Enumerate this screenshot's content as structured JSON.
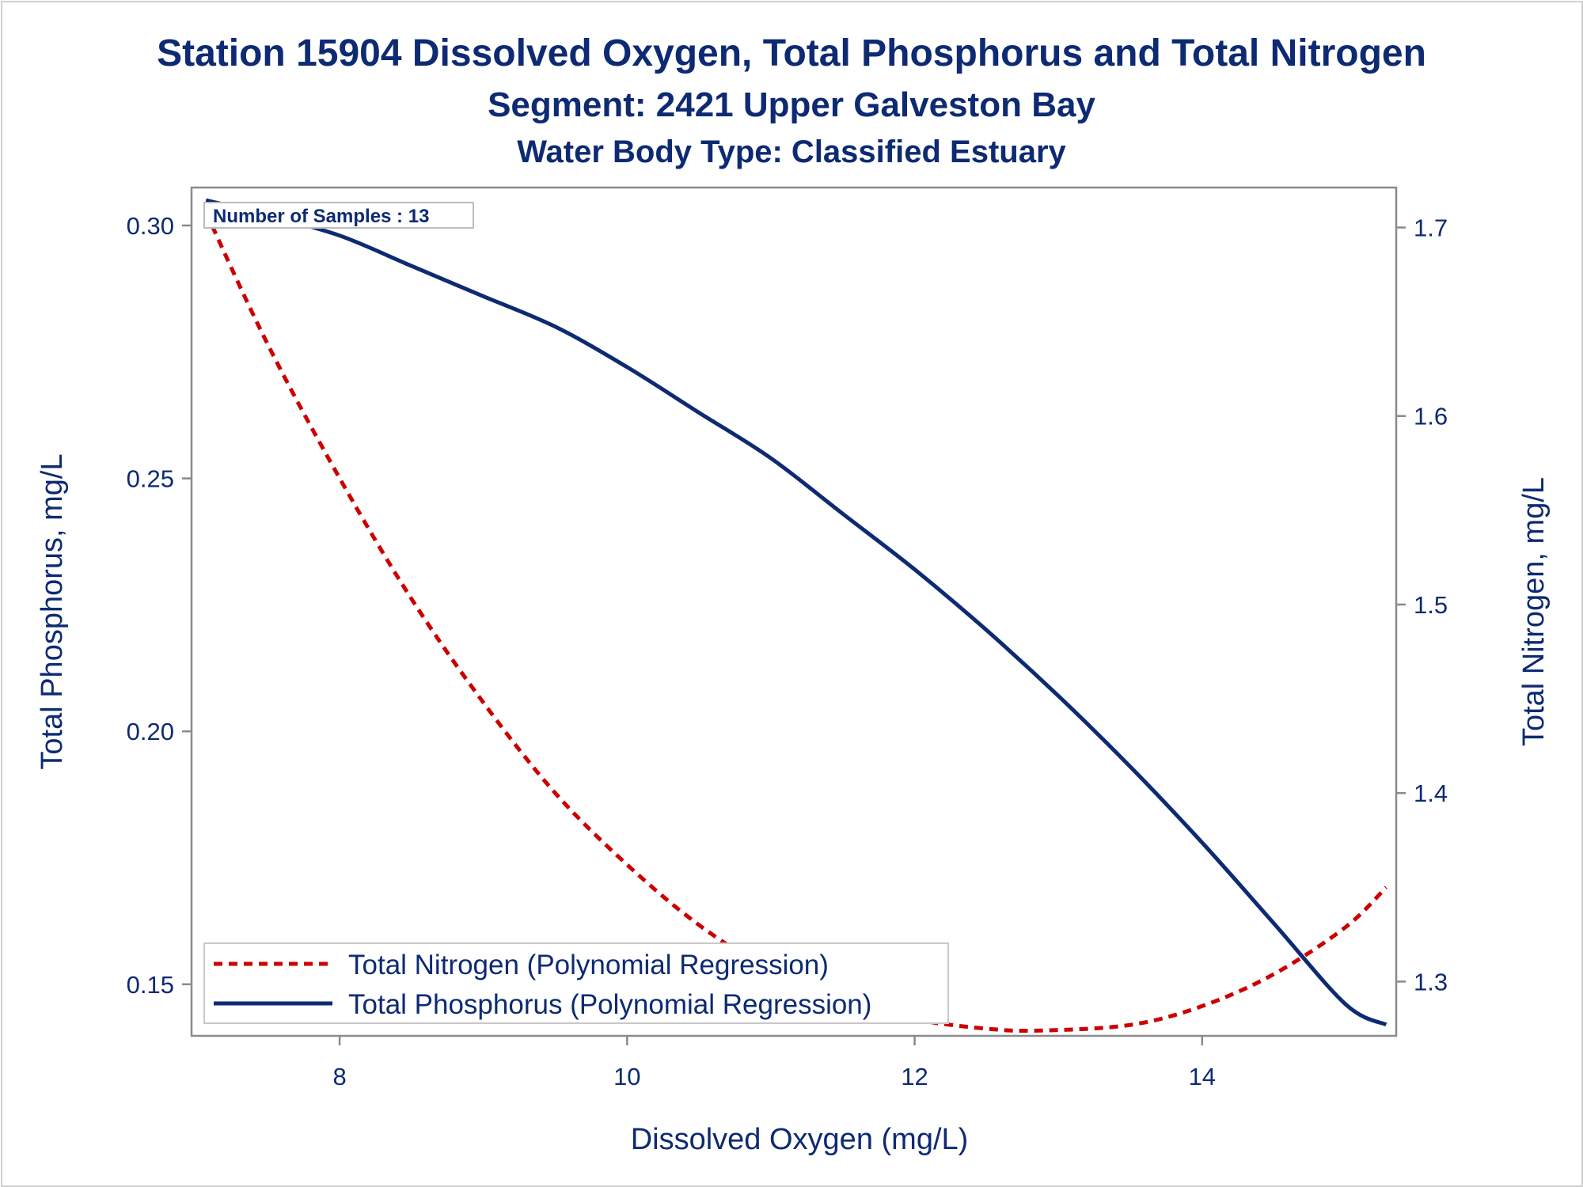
{
  "chart_data": {
    "type": "line",
    "title": "Station 15904  Dissolved Oxygen, Total Phosphorus and Total Nitrogen",
    "subtitle": "Segment: 2421  Upper Galveston Bay",
    "subtitle2": "Water Body Type: Classified Estuary",
    "xlabel": "Dissolved Oxygen (mg/L)",
    "ylabel_left": "Total Phosphorus, mg/L",
    "ylabel_right": "Total Nitrogen, mg/L",
    "xlim": [
      6.97,
      15.35
    ],
    "ylim_left": [
      0.1398,
      0.3075
    ],
    "ylim_right": [
      1.2712,
      1.7212
    ],
    "x_ticks": [
      "8",
      "10",
      "12",
      "14"
    ],
    "y_left_ticks": [
      "0.15",
      "0.20",
      "0.25",
      "0.30"
    ],
    "y_right_ticks": [
      "1.3",
      "1.4",
      "1.5",
      "1.6",
      "1.7"
    ],
    "annotation": "Number of Samples : 13",
    "grid": false,
    "legend_position": "bottom-left",
    "series": [
      {
        "name": "Total Nitrogen (Polynomial Regression)",
        "axis": "right",
        "style": "dashed",
        "color": "#cc0000",
        "x": [
          7.07,
          7.5,
          8.0,
          8.5,
          9.0,
          9.5,
          10.0,
          10.5,
          11.0,
          11.5,
          12.0,
          12.5,
          12.87,
          13.5,
          14.0,
          14.5,
          15.0,
          15.28
        ],
        "y": [
          1.708,
          1.638,
          1.567,
          1.503,
          1.448,
          1.4,
          1.362,
          1.33,
          1.306,
          1.29,
          1.28,
          1.275,
          1.274,
          1.277,
          1.287,
          1.304,
          1.329,
          1.35
        ]
      },
      {
        "name": "Total Phosphorus (Polynomial Regression)",
        "axis": "left",
        "style": "solid",
        "color": "#0d2a73",
        "x": [
          7.07,
          7.5,
          8.0,
          8.5,
          9.0,
          9.5,
          10.0,
          10.5,
          11.0,
          11.5,
          12.0,
          12.5,
          13.0,
          13.5,
          14.0,
          14.5,
          15.0,
          15.28
        ],
        "y": [
          0.305,
          0.302,
          0.298,
          0.292,
          0.286,
          0.28,
          0.272,
          0.263,
          0.254,
          0.243,
          0.232,
          0.22,
          0.207,
          0.193,
          0.178,
          0.162,
          0.146,
          0.142
        ]
      }
    ]
  }
}
